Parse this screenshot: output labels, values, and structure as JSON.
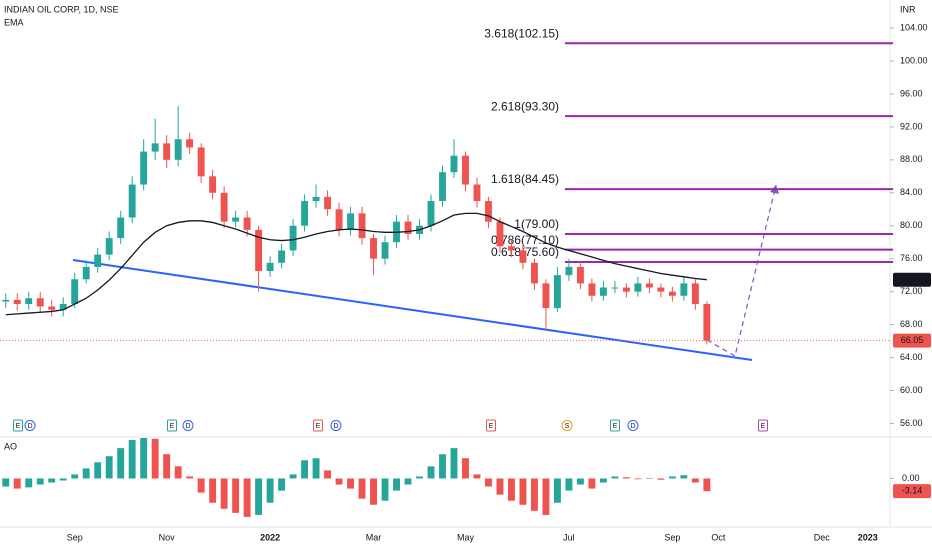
{
  "chart_data": {
    "type": "candlestick",
    "title": "INDIAN OIL CORP, 1D, NSE",
    "currency": "INR",
    "up_color": "#26a69a",
    "down_color": "#ef5350",
    "categories": [
      null,
      null,
      null,
      null,
      null,
      null,
      "Sep",
      null,
      null,
      null,
      null,
      null,
      null,
      null,
      "Nov",
      null,
      null,
      null,
      null,
      null,
      null,
      null,
      null,
      "2022",
      null,
      null,
      null,
      null,
      null,
      null,
      null,
      null,
      "Mar",
      null,
      null,
      null,
      null,
      null,
      null,
      null,
      "May",
      null,
      null,
      null,
      null,
      null,
      null,
      null,
      null,
      "Jul",
      null,
      null,
      null,
      null,
      null,
      null,
      null,
      null,
      "Sep",
      null,
      null,
      null,
      "Oct",
      null,
      null,
      null,
      null,
      null,
      null,
      null,
      null,
      "Dec",
      null,
      null,
      null,
      "2023",
      null
    ],
    "open": [
      70.8,
      71.0,
      70.5,
      71.2,
      70.2,
      69.8,
      70.5,
      73.5,
      75.0,
      76.5,
      78.5,
      81.0,
      85.0,
      89.0,
      90.0,
      88.0,
      90.5,
      89.5,
      86.0,
      84.0,
      80.5,
      81.0,
      79.5,
      74.5,
      75.5,
      77.0,
      80.0,
      83.0,
      83.5,
      82.0,
      79.5,
      81.5,
      78.5,
      76.0,
      78.0,
      80.5,
      79.0,
      80.0,
      83.0,
      86.5,
      88.5,
      85.0,
      83.0,
      80.5,
      77.5,
      77.0,
      75.5,
      73.0,
      70.0,
      74.0,
      75.0,
      73.0,
      71.5,
      72.5,
      72.5,
      72.0,
      73.0,
      72.5,
      72.0,
      71.5,
      73.0,
      70.5,
      null,
      null,
      null,
      null,
      null,
      null,
      null,
      null,
      null,
      null,
      null,
      null,
      null,
      null,
      null
    ],
    "high": [
      71.8,
      71.8,
      72.0,
      72.0,
      71.0,
      71.3,
      74.3,
      75.8,
      77.3,
      79.3,
      81.8,
      86.0,
      90.5,
      93.0,
      91.0,
      94.5,
      91.3,
      90.0,
      86.8,
      84.8,
      81.8,
      81.8,
      80.0,
      76.3,
      77.8,
      80.8,
      83.8,
      85.0,
      84.3,
      82.8,
      82.3,
      82.3,
      79.0,
      78.8,
      81.3,
      81.3,
      80.8,
      83.8,
      87.3,
      90.5,
      89.0,
      85.8,
      83.5,
      81.0,
      78.3,
      77.8,
      76.0,
      73.5,
      75.0,
      76.0,
      75.6,
      73.6,
      73.3,
      73.3,
      73.0,
      73.8,
      73.6,
      73.0,
      72.6,
      73.8,
      73.5,
      70.8,
      null,
      null,
      null,
      null,
      null,
      null,
      null,
      null,
      null,
      null,
      null,
      null,
      null,
      null,
      null
    ],
    "low": [
      70.0,
      69.7,
      69.8,
      69.4,
      69.0,
      69.0,
      70.0,
      73.0,
      74.3,
      75.8,
      77.8,
      80.3,
      84.3,
      88.0,
      87.0,
      87.2,
      88.7,
      85.2,
      83.2,
      79.7,
      79.8,
      78.7,
      72.0,
      73.8,
      74.8,
      76.3,
      79.3,
      82.2,
      81.2,
      78.7,
      78.8,
      77.7,
      74.0,
      75.3,
      77.3,
      78.3,
      78.3,
      79.3,
      82.3,
      85.8,
      84.2,
      82.2,
      79.7,
      76.7,
      76.2,
      74.7,
      72.2,
      67.3,
      69.5,
      73.3,
      72.3,
      70.8,
      70.9,
      71.8,
      71.3,
      71.4,
      71.8,
      71.3,
      70.8,
      70.9,
      69.8,
      65.6,
      null,
      null,
      null,
      null,
      null,
      null,
      null,
      null,
      null,
      null,
      null,
      null,
      null,
      null,
      null
    ],
    "close": [
      71.0,
      70.5,
      71.2,
      70.2,
      69.8,
      70.5,
      73.5,
      75.0,
      76.5,
      78.5,
      81.0,
      85.0,
      89.0,
      90.0,
      88.0,
      90.5,
      89.5,
      86.0,
      84.0,
      80.5,
      81.0,
      79.5,
      74.5,
      75.5,
      77.0,
      80.0,
      83.0,
      83.5,
      82.0,
      79.5,
      81.5,
      78.5,
      76.0,
      78.0,
      80.5,
      79.0,
      80.0,
      83.0,
      86.5,
      88.5,
      85.0,
      83.0,
      80.5,
      77.5,
      77.0,
      75.5,
      73.0,
      70.0,
      74.0,
      75.0,
      73.0,
      71.5,
      72.5,
      72.5,
      72.0,
      73.0,
      72.5,
      72.0,
      71.5,
      73.0,
      70.5,
      66.05,
      null,
      null,
      null,
      null,
      null,
      null,
      null,
      null,
      null,
      null,
      null,
      null,
      null,
      null,
      null
    ],
    "series": [
      {
        "name": "EMA",
        "color": "#131722",
        "values": [
          69.2,
          69.3,
          69.4,
          69.5,
          69.6,
          69.8,
          70.5,
          71.2,
          72.2,
          73.4,
          74.8,
          76.4,
          78.0,
          79.2,
          80.0,
          80.4,
          80.6,
          80.6,
          80.4,
          80.0,
          79.6,
          79.1,
          78.6,
          78.3,
          78.2,
          78.3,
          78.6,
          79.0,
          79.3,
          79.5,
          79.6,
          79.5,
          79.3,
          79.2,
          79.2,
          79.3,
          79.5,
          80.0,
          80.6,
          81.3,
          81.5,
          81.5,
          81.2,
          80.5,
          79.9,
          79.3,
          78.6,
          77.9,
          77.4,
          77.0,
          76.6,
          76.2,
          75.8,
          75.4,
          75.1,
          74.8,
          74.5,
          74.2,
          74.0,
          73.8,
          73.6,
          73.45,
          null,
          null,
          null,
          null,
          null,
          null,
          null,
          null,
          null,
          null,
          null,
          null,
          null,
          null,
          null
        ]
      }
    ],
    "ylim": [
      54.6,
      107.4
    ],
    "yticks": [
      {
        "value": 56,
        "label": "56.00"
      },
      {
        "value": 60,
        "label": "60.00"
      },
      {
        "value": 64,
        "label": "64.00"
      },
      {
        "value": 68,
        "label": "68.00"
      },
      {
        "value": 72,
        "label": "72.00"
      },
      {
        "value": 76,
        "label": "76.00"
      },
      {
        "value": 80,
        "label": "80.00"
      },
      {
        "value": 84,
        "label": "84.00"
      },
      {
        "value": 88,
        "label": "88.00"
      },
      {
        "value": 92,
        "label": "92.00"
      },
      {
        "value": 96,
        "label": "96.00"
      },
      {
        "value": 100,
        "label": "100.00"
      },
      {
        "value": 104,
        "label": "104.00"
      }
    ],
    "fib_color": "#9c27b0",
    "fib_levels": [
      {
        "value": 102.15,
        "label": "3.618(102.15)"
      },
      {
        "value": 93.3,
        "label": "2.618(93.30)"
      },
      {
        "value": 84.45,
        "label": "1.618(84.45)"
      },
      {
        "value": 79.0,
        "label": "1(79.00)"
      },
      {
        "value": 77.1,
        "label": "0.786(77.10)"
      },
      {
        "value": 75.6,
        "label": "0.618(75.60)"
      }
    ],
    "events": [
      {
        "label": "E",
        "color": "#26a69a"
      },
      {
        "label": "D",
        "color": "#2962ff"
      },
      {
        "label": "E",
        "color": "#26a69a"
      },
      {
        "label": "D",
        "color": "#2962ff"
      },
      {
        "label": "E",
        "color": "#ef5350"
      },
      {
        "label": "D",
        "color": "#2962ff"
      },
      {
        "label": "E",
        "color": "#ef5350"
      },
      {
        "label": "S",
        "color": "#f59e0b"
      },
      {
        "label": "E",
        "color": "#26a69a"
      },
      {
        "label": "D",
        "color": "#2962ff"
      },
      {
        "label": "E",
        "color": "#ab47bc"
      }
    ],
    "indicator": {
      "name": "AO",
      "up_color": "#26a69a",
      "down_color": "#ef5350",
      "values": [
        -2.0,
        -2.5,
        -2.2,
        -1.5,
        -1.0,
        -0.5,
        1.0,
        2.5,
        4.0,
        5.5,
        7.5,
        9.5,
        10.0,
        9.8,
        6.0,
        3.0,
        0.5,
        -3.5,
        -6.0,
        -7.5,
        -8.5,
        -9.5,
        -9.0,
        -6.0,
        -3.0,
        1.0,
        4.5,
        5.0,
        2.0,
        -1.5,
        -2.5,
        -5.0,
        -6.5,
        -5.5,
        -3.0,
        -1.5,
        0.5,
        3.0,
        6.0,
        7.5,
        5.0,
        1.0,
        -2.0,
        -4.0,
        -5.5,
        -6.5,
        -8.0,
        -9.0,
        -6.0,
        -3.0,
        -1.5,
        -2.5,
        -1.0,
        0.5,
        0.3,
        -0.2,
        0.0,
        -0.3,
        0.5,
        0.8,
        -1.0,
        -3.14,
        null,
        null,
        null,
        null,
        null,
        null,
        null,
        null,
        null,
        null,
        null,
        null,
        null,
        null,
        null
      ],
      "ylim": [
        -11.5,
        10.0
      ],
      "yticks": [
        {
          "value": 0,
          "label": "0.00"
        }
      ]
    }
  }
}
